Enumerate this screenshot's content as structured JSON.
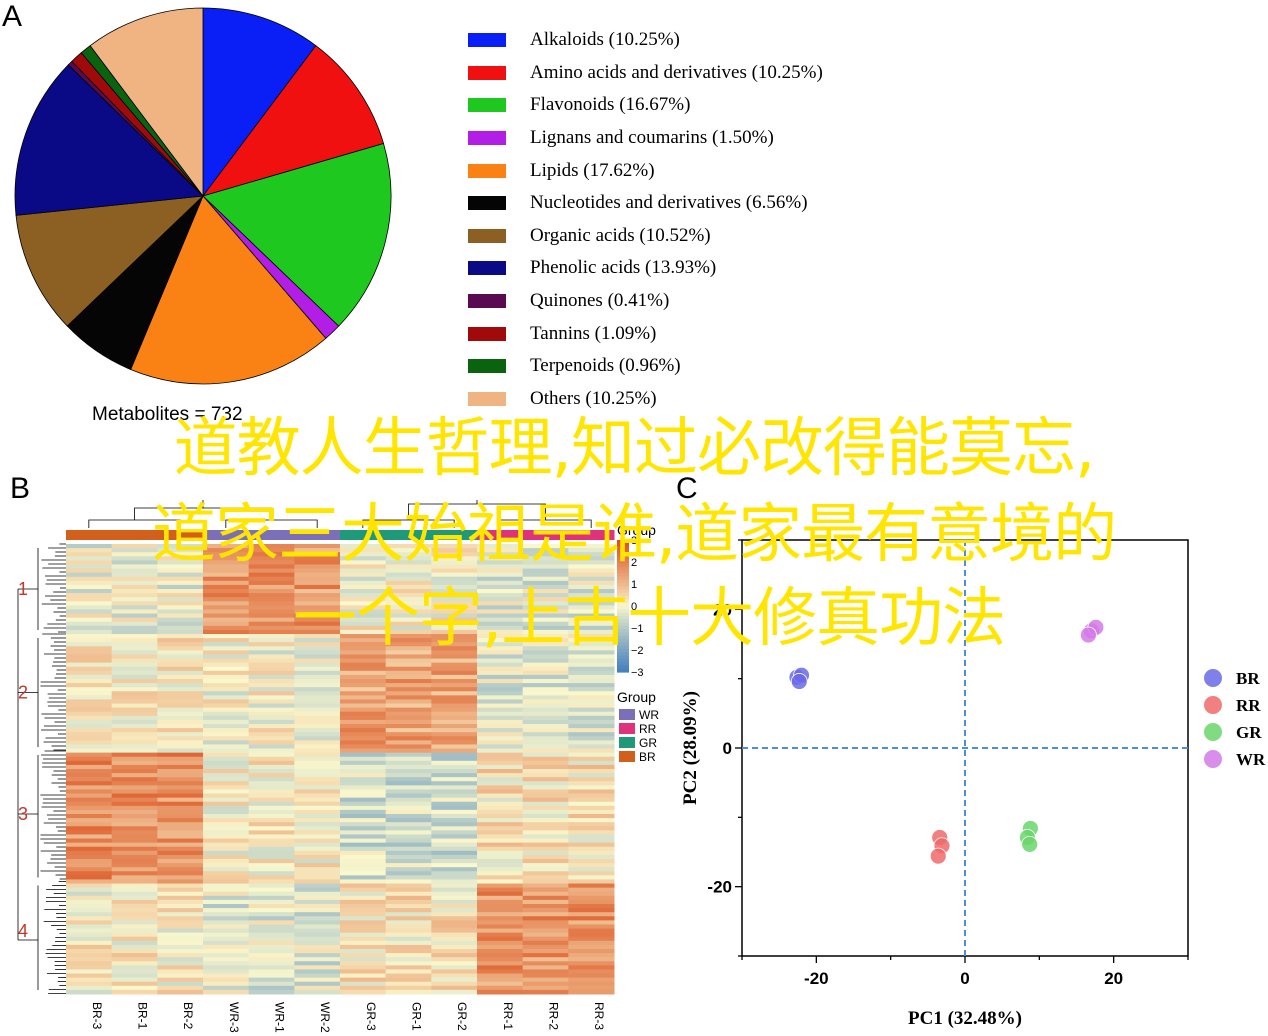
{
  "panels": {
    "a": "A",
    "b": "B",
    "c": "C"
  },
  "overlay": {
    "line1": "道教人生哲理,知过必改得能莫忘,",
    "line2": "道家三大始祖是谁,道家最有意境的",
    "line3": "一个字,上古十大修真功法"
  },
  "chart_data": [
    {
      "type": "pie",
      "title": "Metabolites = 732",
      "slices": [
        {
          "label": "Alkaloids (10.25%)",
          "value": 10.25,
          "color": "#0a1ff5"
        },
        {
          "label": "Amino acids and derivatives (10.25%)",
          "value": 10.25,
          "color": "#f01010"
        },
        {
          "label": "Flavonoids (16.67%)",
          "value": 16.67,
          "color": "#1ec81e"
        },
        {
          "label": "Lignans and coumarins (1.50%)",
          "value": 1.5,
          "color": "#b21ee6"
        },
        {
          "label": "Lipids (17.62%)",
          "value": 17.62,
          "color": "#fa8214"
        },
        {
          "label": "Nucleotides and derivatives (6.56%)",
          "value": 6.56,
          "color": "#050505"
        },
        {
          "label": "Organic acids (10.52%)",
          "value": 10.52,
          "color": "#8c5f23"
        },
        {
          "label": "Phenolic acids (13.93%)",
          "value": 13.93,
          "color": "#0a0a87"
        },
        {
          "label": "Quinones (0.41%)",
          "value": 0.41,
          "color": "#5a0a50"
        },
        {
          "label": "Tannins (1.09%)",
          "value": 1.09,
          "color": "#a00a0a"
        },
        {
          "label": "Terpenoids (0.96%)",
          "value": 0.96,
          "color": "#0a640f"
        },
        {
          "label": "Others (10.25%)",
          "value": 10.25,
          "color": "#f0b482"
        }
      ]
    },
    {
      "type": "heatmap",
      "columns": [
        "BR-3",
        "BR-1",
        "BR-2",
        "WR-3",
        "WR-1",
        "WR-2",
        "GR-3",
        "GR-1",
        "GR-2",
        "RR-1",
        "RR-2",
        "RR-3"
      ],
      "column_groups": [
        "BR",
        "BR",
        "BR",
        "WR",
        "WR",
        "WR",
        "GR",
        "GR",
        "GR",
        "RR",
        "RR",
        "RR"
      ],
      "clusters": [
        "1",
        "2",
        "3",
        "4"
      ],
      "color_scale": {
        "title": "Group",
        "ticks": [
          "3",
          "2",
          "1",
          "0",
          "−1",
          "−2",
          "−3"
        ],
        "range": [
          -3,
          3
        ]
      },
      "group_legend": {
        "title": "Group",
        "items": [
          {
            "label": "WR",
            "color": "#7b6fb8"
          },
          {
            "label": "RR",
            "color": "#e0327a"
          },
          {
            "label": "GR",
            "color": "#1f9a78"
          },
          {
            "label": "BR",
            "color": "#d2601a"
          }
        ]
      }
    },
    {
      "type": "scatter",
      "xlabel": "PC1 (32.48%)",
      "ylabel": "PC2 (28.09%)",
      "xlim": [
        -30,
        30
      ],
      "ylim": [
        -30,
        30
      ],
      "xticks": [
        "-20",
        "0",
        "20"
      ],
      "yticks": [
        "20",
        "0",
        "-20"
      ],
      "series": [
        {
          "name": "BR",
          "color": "#6a6ae8",
          "points": [
            [
              -22.6,
              10.2
            ],
            [
              -22.0,
              10.5
            ],
            [
              -22.3,
              9.6
            ]
          ]
        },
        {
          "name": "RR",
          "color": "#f06a6a",
          "points": [
            [
              -3.4,
              -12.9
            ],
            [
              -3.1,
              -14.1
            ],
            [
              -3.6,
              -15.6
            ]
          ]
        },
        {
          "name": "GR",
          "color": "#6ad66a",
          "points": [
            [
              8.8,
              -11.6
            ],
            [
              8.4,
              -12.9
            ],
            [
              8.7,
              -13.9
            ]
          ]
        },
        {
          "name": "WR",
          "color": "#d27ae8",
          "points": [
            [
              17.0,
              16.9
            ],
            [
              17.6,
              17.4
            ],
            [
              16.6,
              16.3
            ]
          ]
        }
      ]
    }
  ]
}
